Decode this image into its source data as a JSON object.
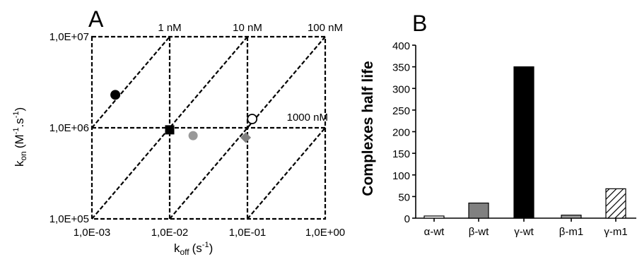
{
  "chart_data": [
    {
      "panel": "A",
      "type": "scatter",
      "xlabel": "k",
      "xlabel_sub": "off",
      "xlabel_unit": "(s",
      "xlabel_unit_sup": "-1",
      "xlabel_close": ")",
      "ylabel_main": "k",
      "ylabel_sub": "on",
      "ylabel_unit": "(M",
      "ylabel_sup1": "-1",
      "ylabel_mid": ".s",
      "ylabel_sup2": "-1",
      "ylabel_close": ")",
      "xscale": "log",
      "yscale": "log",
      "xlim": [
        0.001,
        1.0
      ],
      "ylim": [
        100000,
        10000000
      ],
      "xticks": [
        0.001,
        0.01,
        0.1,
        1.0
      ],
      "xtick_labels": [
        "1,0E-03",
        "1,0E-02",
        "1,0E-01",
        "1,0E+00"
      ],
      "yticks": [
        100000,
        1000000,
        10000000
      ],
      "ytick_labels": [
        "1,0E+05",
        "1,0E+06",
        "1,0E+07"
      ],
      "reference_lines": {
        "kon": [
          1000000
        ],
        "koff": [
          0.01,
          0.1
        ],
        "kd_nM": [
          1,
          10,
          100,
          1000
        ],
        "kd_labels": [
          "1 nM",
          "10 nM",
          "100 nM",
          "1000 nM"
        ]
      },
      "points": [
        {
          "koff": 0.002,
          "kon": 2300000,
          "marker": "circle",
          "fill": "#000000"
        },
        {
          "koff": 0.01,
          "kon": 950000,
          "marker": "square",
          "fill": "#000000"
        },
        {
          "koff": 0.02,
          "kon": 820000,
          "marker": "circle",
          "fill": "#999999"
        },
        {
          "koff": 0.095,
          "kon": 780000,
          "marker": "diamond",
          "fill": "#808080"
        },
        {
          "koff": 0.115,
          "kon": 1250000,
          "marker": "circle",
          "fill": "#ffffff"
        }
      ]
    },
    {
      "panel": "B",
      "type": "bar",
      "ylabel": "Complexes half life",
      "ylim": [
        0,
        400
      ],
      "yticks": [
        0,
        50,
        100,
        150,
        200,
        250,
        300,
        350,
        400
      ],
      "categories": [
        "α-wt",
        "β-wt",
        "γ-wt",
        "β-m1",
        "γ-m1"
      ],
      "values": [
        5,
        35,
        350,
        7,
        68
      ],
      "fills": [
        "#ffffff",
        "#808080",
        "#000000",
        "#9a9a9a",
        "hatch"
      ]
    }
  ]
}
